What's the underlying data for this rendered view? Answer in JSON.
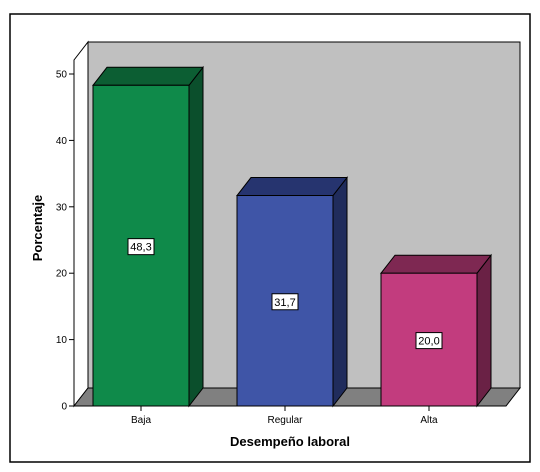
{
  "chart_data": {
    "type": "bar",
    "style": "3d",
    "categories": [
      "Baja",
      "Regular",
      "Alta"
    ],
    "values": [
      48.3,
      31.7,
      20.0
    ],
    "data_labels": [
      "48,3",
      "31,7",
      "20,0"
    ],
    "xlabel": "Desempeño laboral",
    "ylabel": "Porcentaje",
    "ylim": [
      0,
      50
    ],
    "yticks": [
      0,
      10,
      20,
      30,
      40,
      50
    ],
    "grid": false,
    "legend": "none",
    "colors": {
      "bars": [
        "#0f8a4a",
        "#3f55a7",
        "#c23c7e"
      ],
      "bar_tops": [
        "#0c5e33",
        "#26346f",
        "#7e2852"
      ],
      "bar_sides": [
        "#0b4f2c",
        "#202c5c",
        "#6a2145"
      ],
      "back_wall": "#c0c0c0",
      "floor": "#808080",
      "outer_border": "#000000"
    }
  }
}
